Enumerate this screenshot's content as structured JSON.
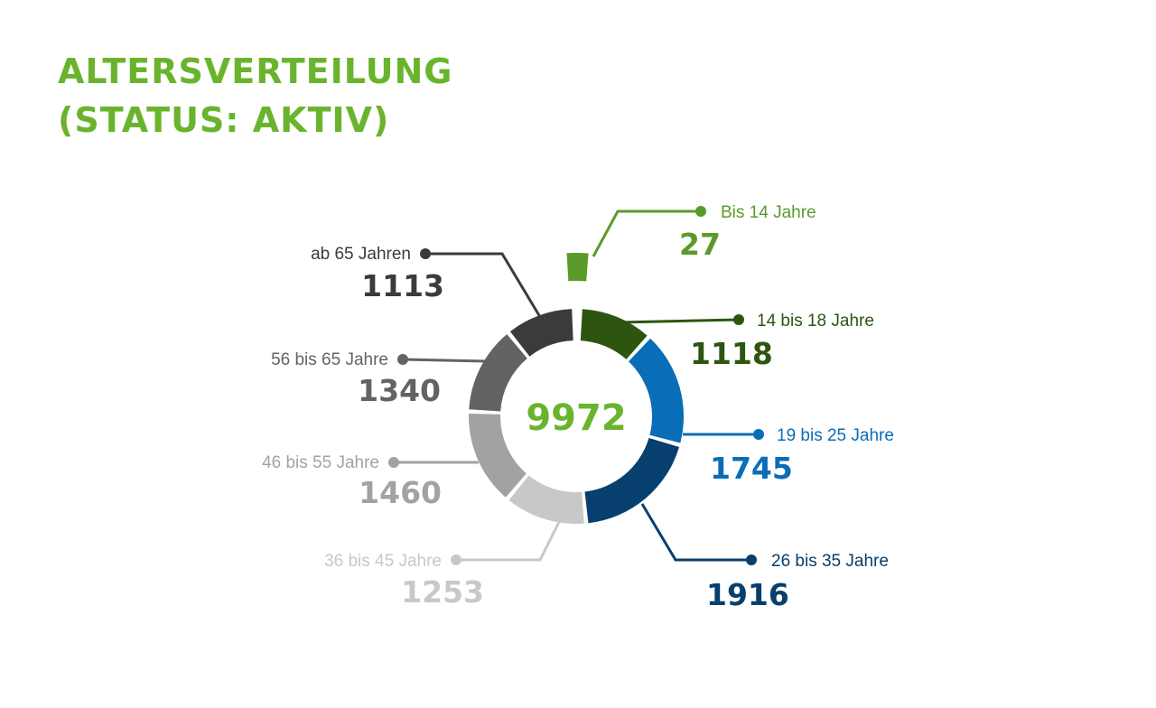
{
  "title": {
    "line1": "ALTERSVERTEILUNG",
    "line2": "(STATUS: AKTIV)"
  },
  "colors": {
    "title": "#6ab42d",
    "center_total": "#6ab42d"
  },
  "chart_data": {
    "type": "pie",
    "variant": "donut",
    "title": "ALTERSVERTEILUNG (STATUS: AKTIV)",
    "total": "9972",
    "categories": [
      "Bis 14 Jahre",
      "14 bis 18 Jahre",
      "19 bis 25 Jahre",
      "26 bis 35 Jahre",
      "36 bis 45 Jahre",
      "46 bis 55 Jahre",
      "56 bis 65 Jahre",
      "ab 65 Jahren"
    ],
    "values": [
      27,
      1118,
      1745,
      1916,
      1253,
      1460,
      1340,
      1113
    ],
    "value_labels": [
      "27",
      "1118",
      "1745",
      "1916",
      "1253",
      "1460",
      "1340",
      "1113"
    ],
    "colors": [
      "#5a9a2b",
      "#2e5510",
      "#0a6db8",
      "#073f6e",
      "#c8c8c8",
      "#a2a2a2",
      "#636363",
      "#3b3b3b"
    ],
    "exploded": [
      "Bis 14 Jahre"
    ],
    "legend": "none"
  }
}
